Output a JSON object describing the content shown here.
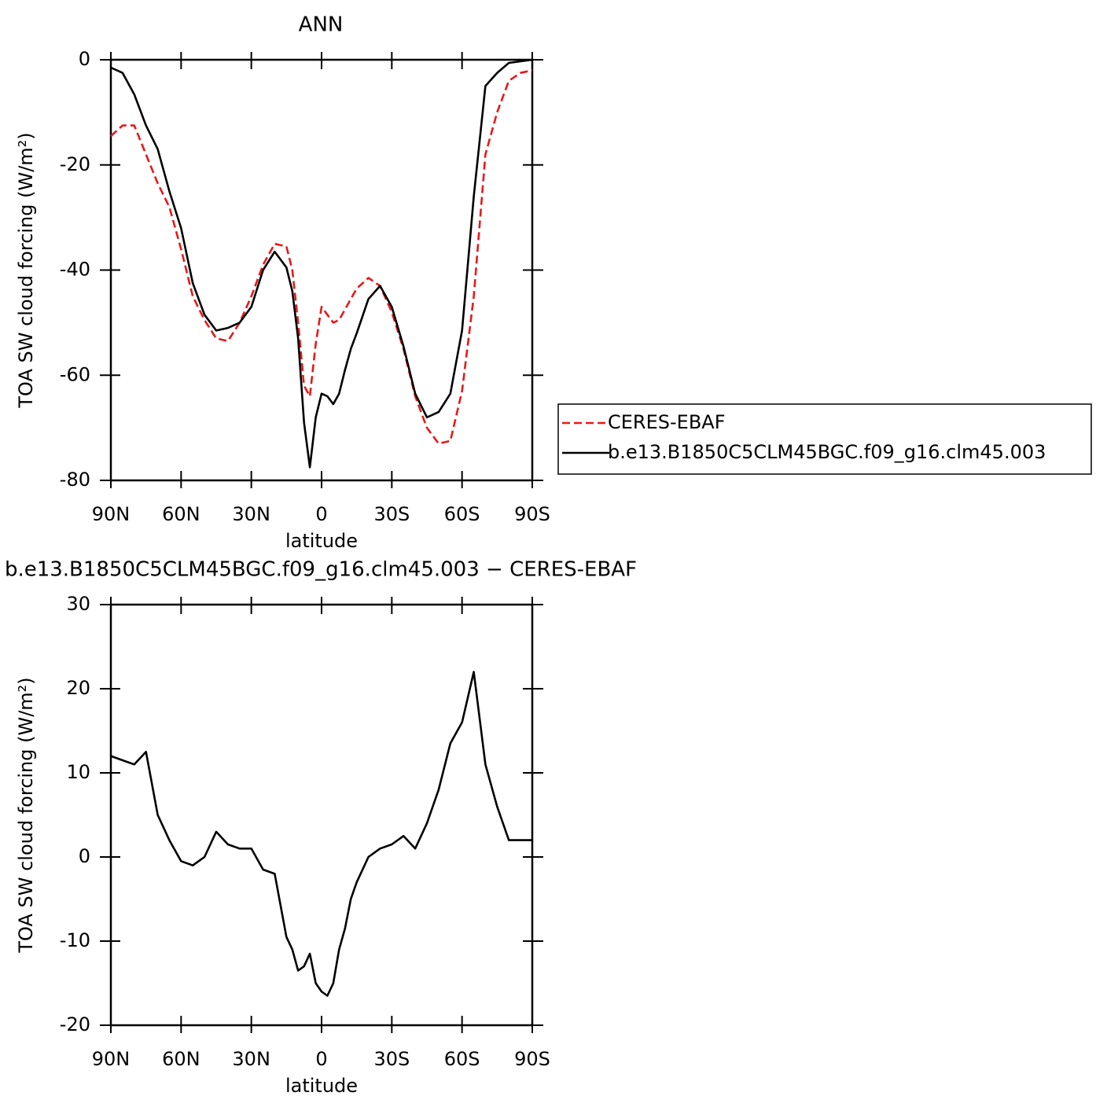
{
  "chart_data": [
    {
      "type": "line",
      "title": "ANN",
      "xlabel": "latitude",
      "ylabel": "TOA SW cloud forcing (W/m²)",
      "x": [
        90,
        85,
        80,
        75,
        70,
        65,
        60,
        55,
        50,
        45,
        40,
        35,
        30,
        25,
        20,
        15,
        12.5,
        10,
        7.5,
        5,
        2.5,
        0,
        -2.5,
        -5,
        -7.5,
        -10,
        -12.5,
        -15,
        -20,
        -25,
        -30,
        -35,
        -40,
        -45,
        -50,
        -55,
        -60,
        -65,
        -70,
        -75,
        -80,
        -85,
        -90
      ],
      "xlim": [
        90,
        -90
      ],
      "xticks": [
        {
          "value": 90,
          "label": "90N"
        },
        {
          "value": 60,
          "label": "60N"
        },
        {
          "value": 30,
          "label": "30N"
        },
        0,
        {
          "value": -30,
          "label": "30S"
        },
        {
          "value": -60,
          "label": "60S"
        },
        {
          "value": -90,
          "label": "90S"
        }
      ],
      "ylim": [
        -80,
        0
      ],
      "yticks": [
        -80,
        -60,
        -40,
        -20,
        0
      ],
      "legend": "right",
      "series": [
        {
          "name": "CERES-EBAF",
          "color": "#e41a1c",
          "line_style": "dashed",
          "values": [
            -14.5,
            -12.5,
            -12.5,
            -18,
            -23.5,
            -28,
            -36,
            -45,
            -49.5,
            -53,
            -53.5,
            -50,
            -45,
            -39,
            -35,
            -35.5,
            -40,
            -50,
            -62,
            -64,
            -54,
            -47,
            -48.5,
            -50,
            -49.5,
            -47.5,
            -45.5,
            -43.5,
            -41.5,
            -43,
            -48,
            -55,
            -64,
            -70,
            -73,
            -72.5,
            -63,
            -45,
            -18,
            -10,
            -4,
            -2.5,
            -2
          ]
        },
        {
          "name": "b.e13.B1850C5CLM45BGC.f09_g16.clm45.003",
          "color": "#000000",
          "line_style": "solid",
          "values": [
            -1.5,
            -2.5,
            -6.6,
            -12.5,
            -17,
            -25,
            -32,
            -42.5,
            -48.5,
            -51.5,
            -51,
            -50,
            -47,
            -40,
            -36.5,
            -39.5,
            -44,
            -53,
            -69,
            -77.5,
            -68,
            -63.5,
            -64,
            -65.5,
            -63.5,
            -59,
            -55,
            -52,
            -45.5,
            -43,
            -47,
            -54.5,
            -63.5,
            -68,
            -67,
            -63.5,
            -51.5,
            -26,
            -5,
            -2.5,
            -0.6,
            -0.3,
            0
          ]
        }
      ]
    },
    {
      "type": "line",
      "title": "b.e13.B1850C5CLM45BGC.f09_g16.clm45.003 − CERES-EBAF",
      "xlabel": "latitude",
      "ylabel": "TOA SW cloud forcing (W/m²)",
      "x": [
        90,
        85,
        80,
        75,
        70,
        65,
        60,
        55,
        50,
        45,
        40,
        35,
        30,
        25,
        20,
        15,
        12.5,
        10,
        7.5,
        5,
        2.5,
        0,
        -2.5,
        -5,
        -7.5,
        -10,
        -12.5,
        -15,
        -20,
        -25,
        -30,
        -35,
        -40,
        -45,
        -50,
        -55,
        -60,
        -65,
        -70,
        -75,
        -80,
        -85,
        -90
      ],
      "xlim": [
        90,
        -90
      ],
      "xticks": [
        {
          "value": 90,
          "label": "90N"
        },
        {
          "value": 60,
          "label": "60N"
        },
        {
          "value": 30,
          "label": "30N"
        },
        0,
        {
          "value": -30,
          "label": "30S"
        },
        {
          "value": -60,
          "label": "60S"
        },
        {
          "value": -90,
          "label": "90S"
        }
      ],
      "ylim": [
        -20,
        30
      ],
      "yticks": [
        -20,
        -10,
        0,
        10,
        20,
        30
      ],
      "series": [
        {
          "color": "#000000",
          "line_style": "solid",
          "values": [
            12,
            11.5,
            11,
            12.5,
            5,
            2,
            -0.5,
            -1,
            0,
            3,
            1.5,
            1,
            1,
            -1.5,
            -2,
            -9.5,
            -11,
            -13.5,
            -13,
            -11.5,
            -15,
            -16,
            -16.5,
            -15,
            -11,
            -8.5,
            -5,
            -3,
            0,
            1,
            1.5,
            2.5,
            1,
            4,
            8,
            13.5,
            16,
            22,
            11,
            6,
            2,
            2,
            2
          ]
        }
      ]
    }
  ]
}
